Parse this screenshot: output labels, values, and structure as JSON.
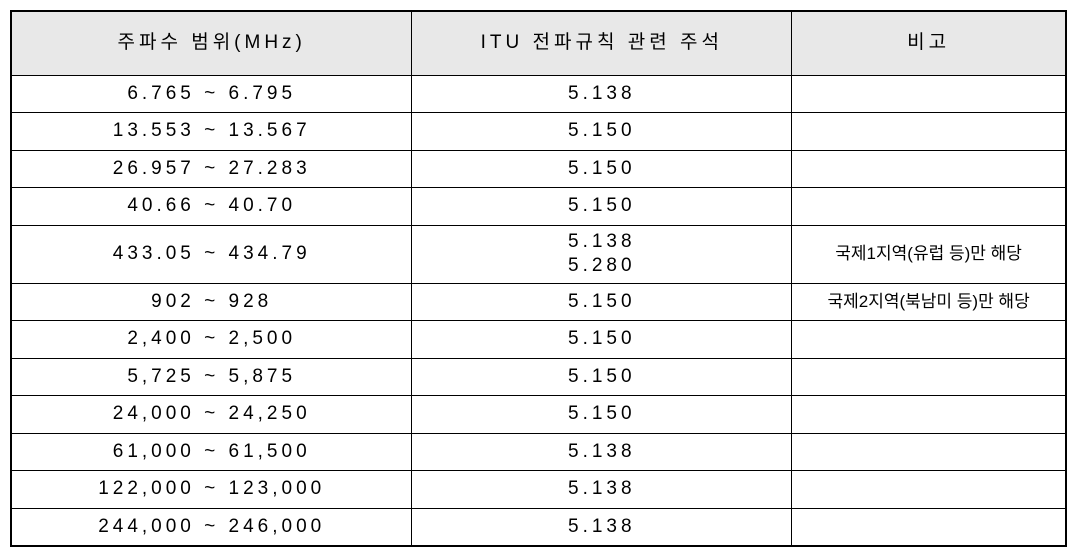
{
  "table": {
    "columns": [
      {
        "label": "주파수 범위(MHz)",
        "class": "col-freq"
      },
      {
        "label": "ITU 전파규칙 관련 주석",
        "class": "col-itu"
      },
      {
        "label": "비고",
        "class": "col-note"
      }
    ],
    "rows": [
      {
        "freq": "6.765 ~ 6.795",
        "itu": "5.138",
        "note": "",
        "tall": false,
        "multiline": false
      },
      {
        "freq": "13.553 ~ 13.567",
        "itu": "5.150",
        "note": "",
        "tall": false,
        "multiline": false
      },
      {
        "freq": "26.957 ~ 27.283",
        "itu": "5.150",
        "note": "",
        "tall": false,
        "multiline": false
      },
      {
        "freq": "40.66 ~ 40.70",
        "itu": "5.150",
        "note": "",
        "tall": false,
        "multiline": false
      },
      {
        "freq": "433.05 ~ 434.79",
        "itu": "5.138\n5.280",
        "note": "국제1지역(유럽 등)만 해당",
        "tall": true,
        "multiline": true
      },
      {
        "freq": "902 ~ 928",
        "itu": "5.150",
        "note": "국제2지역(북남미 등)만 해당",
        "tall": false,
        "multiline": false
      },
      {
        "freq": "2,400 ~ 2,500",
        "itu": "5.150",
        "note": "",
        "tall": false,
        "multiline": false
      },
      {
        "freq": "5,725 ~ 5,875",
        "itu": "5.150",
        "note": "",
        "tall": false,
        "multiline": false
      },
      {
        "freq": "24,000 ~ 24,250",
        "itu": "5.150",
        "note": "",
        "tall": false,
        "multiline": false
      },
      {
        "freq": "61,000 ~ 61,500",
        "itu": "5.138",
        "note": "",
        "tall": false,
        "multiline": false
      },
      {
        "freq": "122,000 ~ 123,000",
        "itu": "5.138",
        "note": "",
        "tall": false,
        "multiline": false
      },
      {
        "freq": "244,000 ~ 246,000",
        "itu": "5.138",
        "note": "",
        "tall": false,
        "multiline": false
      }
    ],
    "header_bg": "#e8e8e8",
    "border_color": "#000000",
    "font_size_body": 19,
    "font_size_note": 17,
    "font_size_header": 19
  }
}
